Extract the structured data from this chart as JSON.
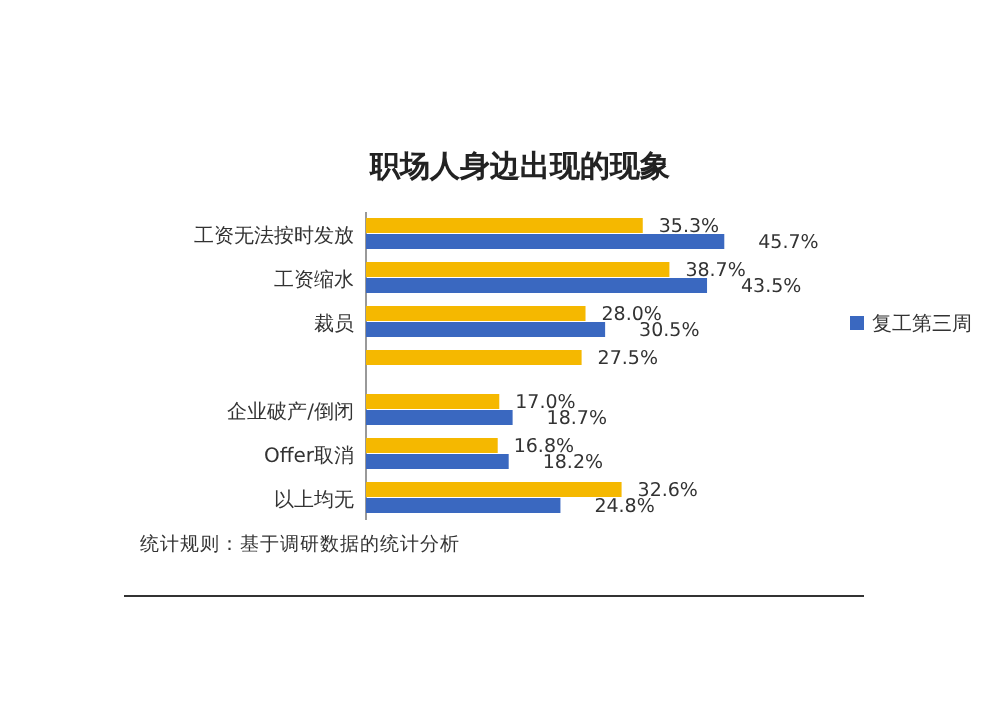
{
  "chart_data": {
    "type": "bar",
    "orientation": "horizontal",
    "title": "职场人身边出现的现象",
    "categories": [
      "工资无法按时发放",
      "工资缩水",
      "裁员",
      null,
      "企业破产/倒闭",
      "Offer取消",
      "以上均无"
    ],
    "series": [
      {
        "color": "#f5b800",
        "values": [
          35.3,
          38.7,
          28.0,
          27.5,
          17.0,
          16.8,
          32.6
        ],
        "value_labels": [
          "35.3%",
          "38.7%",
          "28.0%",
          "27.5%",
          "17.0%",
          "16.8%",
          "32.6%"
        ]
      },
      {
        "name": "复工第三周",
        "color": "#3a68c0",
        "values": [
          45.7,
          43.5,
          30.5,
          null,
          18.7,
          18.2,
          24.8
        ],
        "value_labels": [
          "45.7%",
          "43.5%",
          "30.5%",
          null,
          "18.7%",
          "18.2%",
          "24.8%"
        ]
      }
    ],
    "legend": "right",
    "annotations": [
      "统计规则：基于调研数据的统计分析"
    ]
  }
}
